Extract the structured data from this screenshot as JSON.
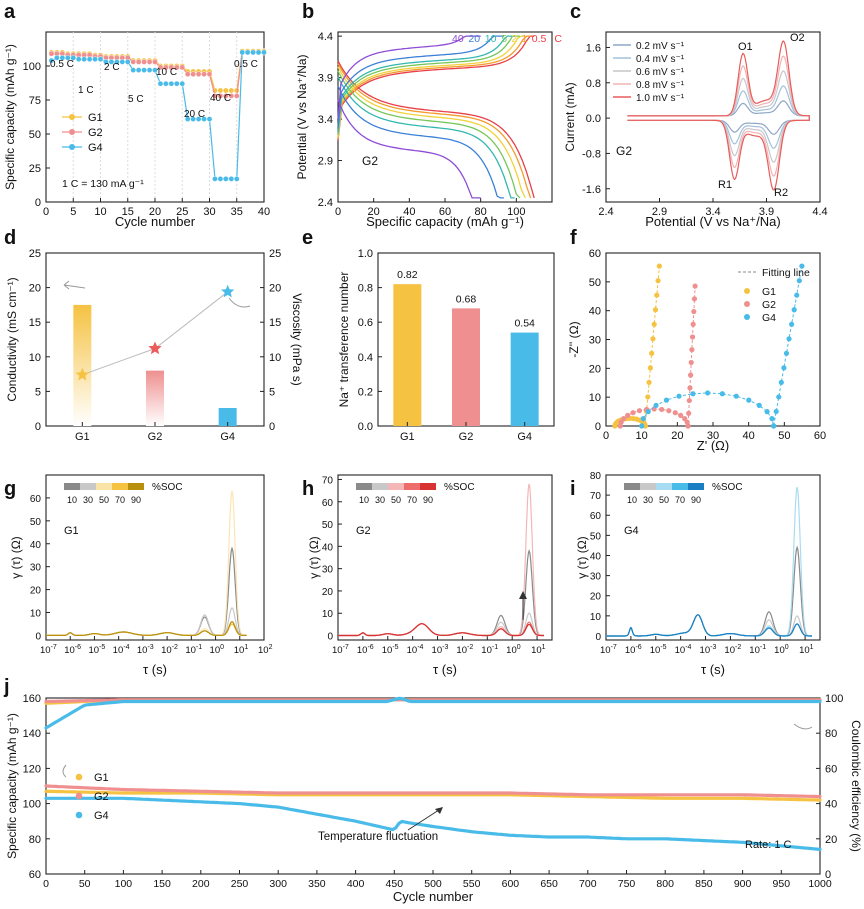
{
  "figure": {
    "bg": "#ffffff"
  },
  "colors": {
    "G1": "#f5c242",
    "G2": "#ef8f8f",
    "G4": "#49bbe9"
  },
  "chart_data": [
    {
      "id": "a",
      "panel_label": "a",
      "type": "line",
      "title": "",
      "xlabel": "Cycle number",
      "ylabel": "Specific capacity (mAh g⁻¹)",
      "xlim": [
        0,
        40
      ],
      "ylim": [
        0,
        125
      ],
      "xticks": [
        0,
        5,
        10,
        15,
        20,
        25,
        30,
        35,
        40
      ],
      "yticks": [
        0,
        25,
        50,
        75,
        100
      ],
      "rate_labels": [
        "0.5 C",
        "1 C",
        "2 C",
        "5 C",
        "10 C",
        "20 C",
        "40 C",
        "0.5 C"
      ],
      "note": "1 C = 130 mA g⁻¹",
      "series": [
        {
          "name": "G1",
          "color": "#f5c242",
          "x": [
            1,
            2,
            3,
            4,
            5,
            6,
            7,
            8,
            9,
            10,
            11,
            12,
            13,
            14,
            15,
            16,
            17,
            18,
            19,
            20,
            21,
            22,
            23,
            24,
            25,
            26,
            27,
            28,
            29,
            30,
            31,
            32,
            33,
            34,
            35,
            36,
            37,
            38,
            39,
            40
          ],
          "y": [
            110,
            110,
            110,
            109,
            109,
            109,
            109,
            109,
            108,
            108,
            107,
            107,
            107,
            107,
            107,
            104,
            104,
            104,
            104,
            104,
            100,
            100,
            100,
            100,
            100,
            96,
            96,
            96,
            96,
            96,
            82,
            82,
            82,
            82,
            82,
            111,
            111,
            111,
            111,
            111
          ]
        },
        {
          "name": "G2",
          "color": "#ef8f8f",
          "x": [
            1,
            2,
            3,
            4,
            5,
            6,
            7,
            8,
            9,
            10,
            11,
            12,
            13,
            14,
            15,
            16,
            17,
            18,
            19,
            20,
            21,
            22,
            23,
            24,
            25,
            26,
            27,
            28,
            29,
            30,
            31,
            32,
            33,
            34,
            35,
            36,
            37,
            38,
            39,
            40
          ],
          "y": [
            109,
            109,
            109,
            108,
            108,
            108,
            108,
            108,
            107,
            107,
            106,
            106,
            106,
            106,
            106,
            103,
            103,
            103,
            103,
            103,
            99,
            99,
            99,
            99,
            99,
            94,
            94,
            94,
            94,
            94,
            78,
            78,
            78,
            78,
            78,
            110,
            110,
            110,
            110,
            110
          ]
        },
        {
          "name": "G4",
          "color": "#49bbe9",
          "x": [
            1,
            2,
            3,
            4,
            5,
            6,
            7,
            8,
            9,
            10,
            11,
            12,
            13,
            14,
            15,
            16,
            17,
            18,
            19,
            20,
            21,
            22,
            23,
            24,
            25,
            26,
            27,
            28,
            29,
            30,
            31,
            32,
            33,
            34,
            35,
            36,
            37,
            38,
            39,
            40
          ],
          "y": [
            104,
            106,
            106,
            106,
            106,
            105,
            105,
            105,
            105,
            105,
            103,
            103,
            103,
            103,
            103,
            97,
            97,
            97,
            97,
            97,
            87,
            87,
            87,
            87,
            87,
            61,
            61,
            61,
            61,
            61,
            17,
            17,
            17,
            17,
            17,
            110,
            110,
            110,
            110,
            110
          ]
        }
      ]
    },
    {
      "id": "b",
      "panel_label": "b",
      "type": "line",
      "title": "",
      "xlabel": "Specific capacity (mAh g⁻¹)",
      "ylabel": "Potential (V vs Na⁺/Na)",
      "xlim": [
        0,
        120
      ],
      "ylim": [
        2.4,
        4.45
      ],
      "xticks": [
        0,
        20,
        40,
        60,
        80,
        100
      ],
      "yticks": [
        2.4,
        2.9,
        3.4,
        3.9,
        4.4
      ],
      "annotation": "G2",
      "legend_rates": [
        "40",
        "20",
        "10",
        "5",
        "2",
        "1",
        "0.5",
        "C"
      ],
      "series": [
        {
          "name": "0.5 C",
          "color": "#e8404a",
          "capacity": 110,
          "charge_plateau": 4.0,
          "discharge_plateau": 3.55
        },
        {
          "name": "1 C",
          "color": "#f39b2e",
          "capacity": 108,
          "charge_plateau": 4.02,
          "discharge_plateau": 3.52
        },
        {
          "name": "2 C",
          "color": "#f1d23a",
          "capacity": 105,
          "charge_plateau": 4.04,
          "discharge_plateau": 3.48
        },
        {
          "name": "5 C",
          "color": "#77c65a",
          "capacity": 102,
          "charge_plateau": 4.07,
          "discharge_plateau": 3.43
        },
        {
          "name": "10 C",
          "color": "#33b7b0",
          "capacity": 99,
          "charge_plateau": 4.1,
          "discharge_plateau": 3.36
        },
        {
          "name": "20 C",
          "color": "#3c80d8",
          "capacity": 93,
          "charge_plateau": 4.16,
          "discharge_plateau": 3.25
        },
        {
          "name": "40 C",
          "color": "#8e4dd6",
          "capacity": 80,
          "charge_plateau": 4.26,
          "discharge_plateau": 3.08
        }
      ]
    },
    {
      "id": "c",
      "panel_label": "c",
      "type": "line",
      "title": "",
      "xlabel": "Potential (V vs Na⁺/Na)",
      "ylabel": "Current (mA)",
      "xlim": [
        2.4,
        4.4
      ],
      "ylim": [
        -1.9,
        1.95
      ],
      "xticks": [
        2.4,
        2.9,
        3.4,
        3.9,
        4.4
      ],
      "yticks": [
        -1.6,
        -0.8,
        0.0,
        0.8,
        1.6
      ],
      "annotation": "G2",
      "peak_labels": [
        "O1",
        "O2",
        "R1",
        "R2"
      ],
      "series": [
        {
          "name": "0.2 mV s⁻¹",
          "color": "#8fa6c8",
          "scale": 0.2
        },
        {
          "name": "0.4 mV s⁻¹",
          "color": "#a3c1da",
          "scale": 0.4
        },
        {
          "name": "0.6 mV s⁻¹",
          "color": "#c7c7cc",
          "scale": 0.6
        },
        {
          "name": "0.8 mV s⁻¹",
          "color": "#f2b3b3",
          "scale": 0.8
        },
        {
          "name": "1.0 mV s⁻¹",
          "color": "#e85c5c",
          "scale": 1.0
        }
      ]
    },
    {
      "id": "d",
      "panel_label": "d",
      "type": "bar",
      "title": "",
      "xlabel": "",
      "ylabel": "Conductivity (mS cm⁻¹)",
      "ylabel_right": "Viscosity (mPa s)",
      "categories": [
        "G1",
        "G2",
        "G4"
      ],
      "ylim": [
        0,
        25
      ],
      "yticks": [
        0,
        5,
        10,
        15,
        20,
        25
      ],
      "series": [
        {
          "name": "Conductivity",
          "values": [
            17.5,
            8.0,
            2.6
          ]
        },
        {
          "name": "Viscosity",
          "values": [
            7.4,
            11.2,
            19.4
          ]
        }
      ]
    },
    {
      "id": "e",
      "panel_label": "e",
      "type": "bar",
      "title": "",
      "xlabel": "",
      "ylabel": "Na⁺ transference number",
      "categories": [
        "G1",
        "G2",
        "G4"
      ],
      "values": [
        0.82,
        0.68,
        0.54
      ],
      "value_labels": [
        "0.82",
        "0.68",
        "0.54"
      ],
      "ylim": [
        0,
        1.0
      ],
      "yticks": [
        0.0,
        0.2,
        0.4,
        0.6,
        0.8,
        1.0
      ]
    },
    {
      "id": "f",
      "panel_label": "f",
      "type": "scatter",
      "title": "",
      "xlabel": "Z' (Ω)",
      "ylabel": "-Z'' (Ω)",
      "xlim": [
        0,
        60
      ],
      "ylim": [
        0,
        60
      ],
      "xticks": [
        0,
        10,
        20,
        30,
        40,
        50,
        60
      ],
      "yticks": [
        0,
        10,
        20,
        30,
        40,
        50,
        60
      ],
      "legend": [
        "Fitting line",
        "G1",
        "G2",
        "G4"
      ],
      "series": [
        {
          "name": "G1",
          "color": "#f5c242",
          "R0": 2.5,
          "R1": 11,
          "tail_x": 15,
          "tail_top": 56
        },
        {
          "name": "G2",
          "color": "#ef8f8f",
          "R0": 4,
          "R1": 23,
          "tail_x": 25,
          "tail_top": 49
        },
        {
          "name": "G4",
          "color": "#49bbe9",
          "R0": 10,
          "R1": 47,
          "tail_x": 55,
          "tail_top": 56
        }
      ]
    },
    {
      "id": "g",
      "panel_label": "g",
      "type": "line",
      "scale": "log-x",
      "title": "",
      "xlabel": "τ (s)",
      "ylabel": "γ (τ) (Ω)",
      "xlim": [
        -7,
        2
      ],
      "ylim": [
        -2,
        70
      ],
      "xtick_exponents": [
        "-7",
        "-6",
        "-5",
        "-4",
        "-3",
        "-2",
        "-1",
        "0",
        "1",
        "2"
      ],
      "yticks": [
        0,
        10,
        20,
        30,
        40,
        50,
        60
      ],
      "annotation": "G1",
      "legend_title": "%SOC",
      "soc_labels": [
        "10",
        "30",
        "50",
        "70",
        "90"
      ],
      "soc_colors": [
        "#8a8a8a",
        "#c8c8c8",
        "#f9e3a6",
        "#f5c242",
        "#b8900e"
      ],
      "series": [
        {
          "name": "10",
          "color": "#8a8a8a",
          "peak_main": 38,
          "peak_side": 8
        },
        {
          "name": "30",
          "color": "#c8c8c8",
          "peak_main": 12,
          "peak_side": 9
        },
        {
          "name": "50",
          "color": "#fbe6b2",
          "peak_main": 63,
          "peak_side": 3
        },
        {
          "name": "70",
          "color": "#f5c242",
          "peak_main": 5,
          "peak_side": 2
        },
        {
          "name": "90",
          "color": "#b8900e",
          "peak_main": 6,
          "peak_side": 2
        }
      ]
    },
    {
      "id": "h",
      "panel_label": "h",
      "type": "line",
      "scale": "log-x",
      "title": "",
      "xlabel": "τ (s)",
      "ylabel": "γ (τ) (Ω)",
      "xlim": [
        -7,
        1.6
      ],
      "ylim": [
        -2,
        72
      ],
      "xtick_exponents": [
        "-7",
        "-6",
        "-5",
        "-4",
        "-3",
        "-2",
        "-1",
        "0",
        "1"
      ],
      "yticks": [
        0,
        10,
        20,
        30,
        40,
        50,
        60,
        70
      ],
      "annotation": "G2",
      "legend_title": "%SOC",
      "soc_labels": [
        "10",
        "30",
        "50",
        "70",
        "90"
      ],
      "soc_colors": [
        "#8a8a8a",
        "#c8c8c8",
        "#f3b7b7",
        "#ef6c6c",
        "#d83232"
      ],
      "series": [
        {
          "name": "10",
          "color": "#8a8a8a",
          "peak_main": 38,
          "peak_side": 9
        },
        {
          "name": "30",
          "color": "#c8c8c8",
          "peak_main": 10,
          "peak_side": 6
        },
        {
          "name": "50",
          "color": "#f3b7b7",
          "peak_main": 68,
          "peak_side": 4
        },
        {
          "name": "70",
          "color": "#ef6c6c",
          "peak_main": 6,
          "peak_side": 3
        },
        {
          "name": "90",
          "color": "#d83232",
          "peak_main": 5,
          "peak_side": 3
        }
      ]
    },
    {
      "id": "i",
      "panel_label": "i",
      "type": "line",
      "scale": "log-x",
      "title": "",
      "xlabel": "τ (s)",
      "ylabel": "γ (τ) (Ω)",
      "xlim": [
        -7,
        1.6
      ],
      "ylim": [
        -2,
        80
      ],
      "xtick_exponents": [
        "-7",
        "-6",
        "-5",
        "-4",
        "-3",
        "-2",
        "-1",
        "0",
        "1"
      ],
      "yticks": [
        0,
        10,
        20,
        30,
        40,
        50,
        60,
        70,
        80
      ],
      "annotation": "G4",
      "legend_title": "%SOC",
      "soc_labels": [
        "10",
        "30",
        "50",
        "70",
        "90"
      ],
      "soc_colors": [
        "#8a8a8a",
        "#c8c8c8",
        "#a8dcf2",
        "#49bbe9",
        "#1a7fc2"
      ],
      "series": [
        {
          "name": "10",
          "color": "#8a8a8a",
          "peak_main": 44,
          "peak_side": 12
        },
        {
          "name": "30",
          "color": "#c8c8c8",
          "peak_main": 10,
          "peak_side": 8
        },
        {
          "name": "50",
          "color": "#a8dcf2",
          "peak_main": 74,
          "peak_side": 5
        },
        {
          "name": "70",
          "color": "#49bbe9",
          "peak_main": 6,
          "peak_side": 4
        },
        {
          "name": "90",
          "color": "#1a7fc2",
          "peak_main": 6,
          "peak_side": 4
        }
      ]
    },
    {
      "id": "j",
      "panel_label": "j",
      "type": "scatter",
      "title": "",
      "xlabel": "Cycle number",
      "ylabel": "Specific capacity (mAh g⁻¹)",
      "ylabel_right": "Coulombic efficiency (%)",
      "xlim": [
        0,
        1000
      ],
      "ylim": [
        60,
        160
      ],
      "ylim_right": [
        0,
        100
      ],
      "xticks": [
        0,
        50,
        100,
        150,
        200,
        250,
        300,
        350,
        400,
        450,
        500,
        550,
        600,
        650,
        700,
        750,
        800,
        850,
        900,
        950,
        1000
      ],
      "yticks": [
        60,
        80,
        100,
        120,
        140,
        160
      ],
      "yticks_right": [
        0,
        20,
        40,
        60,
        80,
        100
      ],
      "annotation": "Temperature fluctuation",
      "rate_note": "Rate: 1 C",
      "series": [
        {
          "name": "G1",
          "color": "#f5c242",
          "cycles": [
            0,
            100,
            200,
            300,
            400,
            500,
            600,
            700,
            800,
            900,
            1000
          ],
          "capacity": [
            107,
            106,
            106,
            105,
            105,
            105,
            105,
            104,
            103,
            103,
            102
          ],
          "ce": [
            97,
            99,
            99,
            99,
            99,
            99,
            99,
            99,
            99,
            99,
            99
          ]
        },
        {
          "name": "G2",
          "color": "#ef8f8f",
          "cycles": [
            0,
            100,
            200,
            300,
            400,
            500,
            600,
            700,
            800,
            900,
            1000
          ],
          "capacity": [
            110,
            108,
            107,
            106,
            106,
            106,
            106,
            105,
            105,
            105,
            104
          ],
          "ce": [
            98,
            99,
            99,
            99,
            99,
            99,
            99,
            99,
            99,
            99,
            99
          ]
        },
        {
          "name": "G4",
          "color": "#49bbe9",
          "cycles": [
            0,
            50,
            100,
            150,
            200,
            250,
            300,
            350,
            400,
            440,
            450,
            458,
            470,
            500,
            550,
            600,
            650,
            700,
            750,
            800,
            850,
            900,
            950,
            1000
          ],
          "capacity": [
            103,
            103,
            103,
            102,
            101,
            100,
            98,
            94,
            90,
            86,
            85,
            90,
            89,
            87,
            84,
            82,
            81,
            81,
            80,
            80,
            79,
            78,
            76,
            74
          ],
          "ce": [
            83,
            96,
            98,
            98,
            98,
            98,
            98,
            98,
            98,
            98,
            99,
            100,
            98,
            98,
            98,
            98,
            98,
            98,
            98,
            98,
            98,
            98,
            98,
            98
          ]
        }
      ]
    }
  ]
}
